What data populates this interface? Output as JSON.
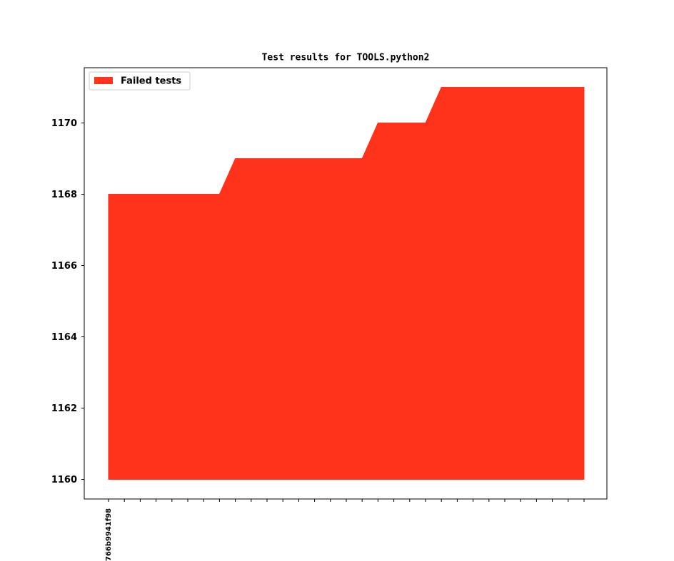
{
  "chart_data": {
    "type": "area",
    "title": "Test results for TOOLS.python2",
    "categories": [
      "766b9941f98",
      null,
      null,
      null,
      null,
      null,
      null,
      null,
      null,
      null,
      null,
      null,
      null,
      null,
      null,
      null,
      null,
      null,
      null,
      null,
      null,
      null,
      null,
      null,
      null,
      null,
      null,
      null,
      null,
      null,
      null
    ],
    "series": [
      {
        "name": "Failed tests",
        "color": "#ff331c",
        "values": [
          1168,
          1168,
          1168,
          1168,
          1168,
          1168,
          1168,
          1168,
          1169,
          1169,
          1169,
          1169,
          1169,
          1169,
          1169,
          1169,
          1169,
          1170,
          1170,
          1170,
          1170,
          1171,
          1171,
          1171,
          1171,
          1171,
          1171,
          1171,
          1171,
          1171,
          1171
        ]
      }
    ],
    "baseline": 1160,
    "ylim": [
      1159.45,
      1171.55
    ],
    "yticks": [
      1160,
      1162,
      1164,
      1166,
      1168,
      1170
    ],
    "legend": "upper left"
  }
}
